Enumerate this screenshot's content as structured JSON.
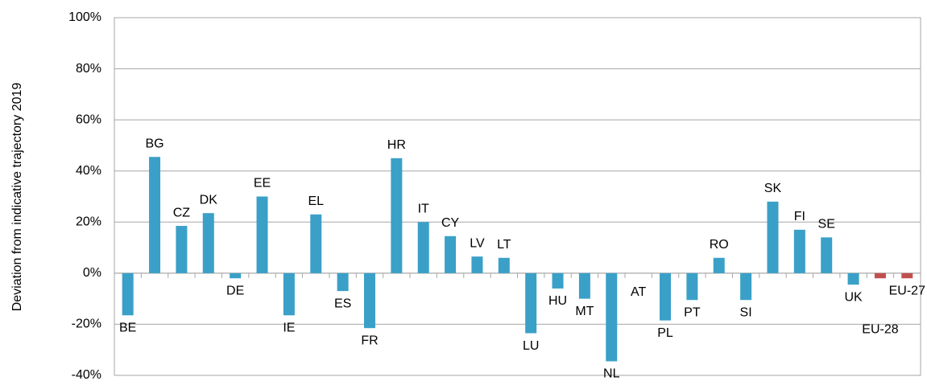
{
  "chart_data": {
    "type": "bar",
    "y_label": "Deviation from indicative trajectory 2019",
    "categories": [
      "BE",
      "BG",
      "CZ",
      "DK",
      "DE",
      "EE",
      "IE",
      "EL",
      "ES",
      "FR",
      "HR",
      "IT",
      "CY",
      "LV",
      "LT",
      "LU",
      "HU",
      "MT",
      "NL",
      "AT",
      "PL",
      "PT",
      "RO",
      "SI",
      "SK",
      "FI",
      "SE",
      "UK",
      "EU-28",
      "EU-27"
    ],
    "values": [
      -16.5,
      45.5,
      18.5,
      23.5,
      -2,
      30,
      -16.5,
      23,
      -7,
      -21.5,
      45,
      20,
      14.5,
      6.5,
      6,
      -23.5,
      -6,
      -10,
      -34.5,
      0,
      -18.5,
      -10.5,
      6,
      -10.5,
      28,
      17,
      14,
      -4.5,
      -2,
      -2
    ],
    "colors": [
      "#3aa0c8",
      "#3aa0c8",
      "#3aa0c8",
      "#3aa0c8",
      "#3aa0c8",
      "#3aa0c8",
      "#3aa0c8",
      "#3aa0c8",
      "#3aa0c8",
      "#3aa0c8",
      "#3aa0c8",
      "#3aa0c8",
      "#3aa0c8",
      "#3aa0c8",
      "#3aa0c8",
      "#3aa0c8",
      "#3aa0c8",
      "#3aa0c8",
      "#3aa0c8",
      "#3aa0c8",
      "#3aa0c8",
      "#3aa0c8",
      "#3aa0c8",
      "#3aa0c8",
      "#3aa0c8",
      "#3aa0c8",
      "#3aa0c8",
      "#3aa0c8",
      "#c0504d",
      "#c0504d"
    ],
    "ylim": [
      -40,
      100
    ],
    "yticks": [
      {
        "value": -40,
        "label": "-40%"
      },
      {
        "value": -20,
        "label": "-20%"
      },
      {
        "value": 0,
        "label": "0%"
      },
      {
        "value": 20,
        "label": "20%"
      },
      {
        "value": 40,
        "label": "40%"
      },
      {
        "value": 60,
        "label": "60%"
      },
      {
        "value": 80,
        "label": "80%"
      },
      {
        "value": 100,
        "label": "100%"
      }
    ],
    "grid": true
  }
}
